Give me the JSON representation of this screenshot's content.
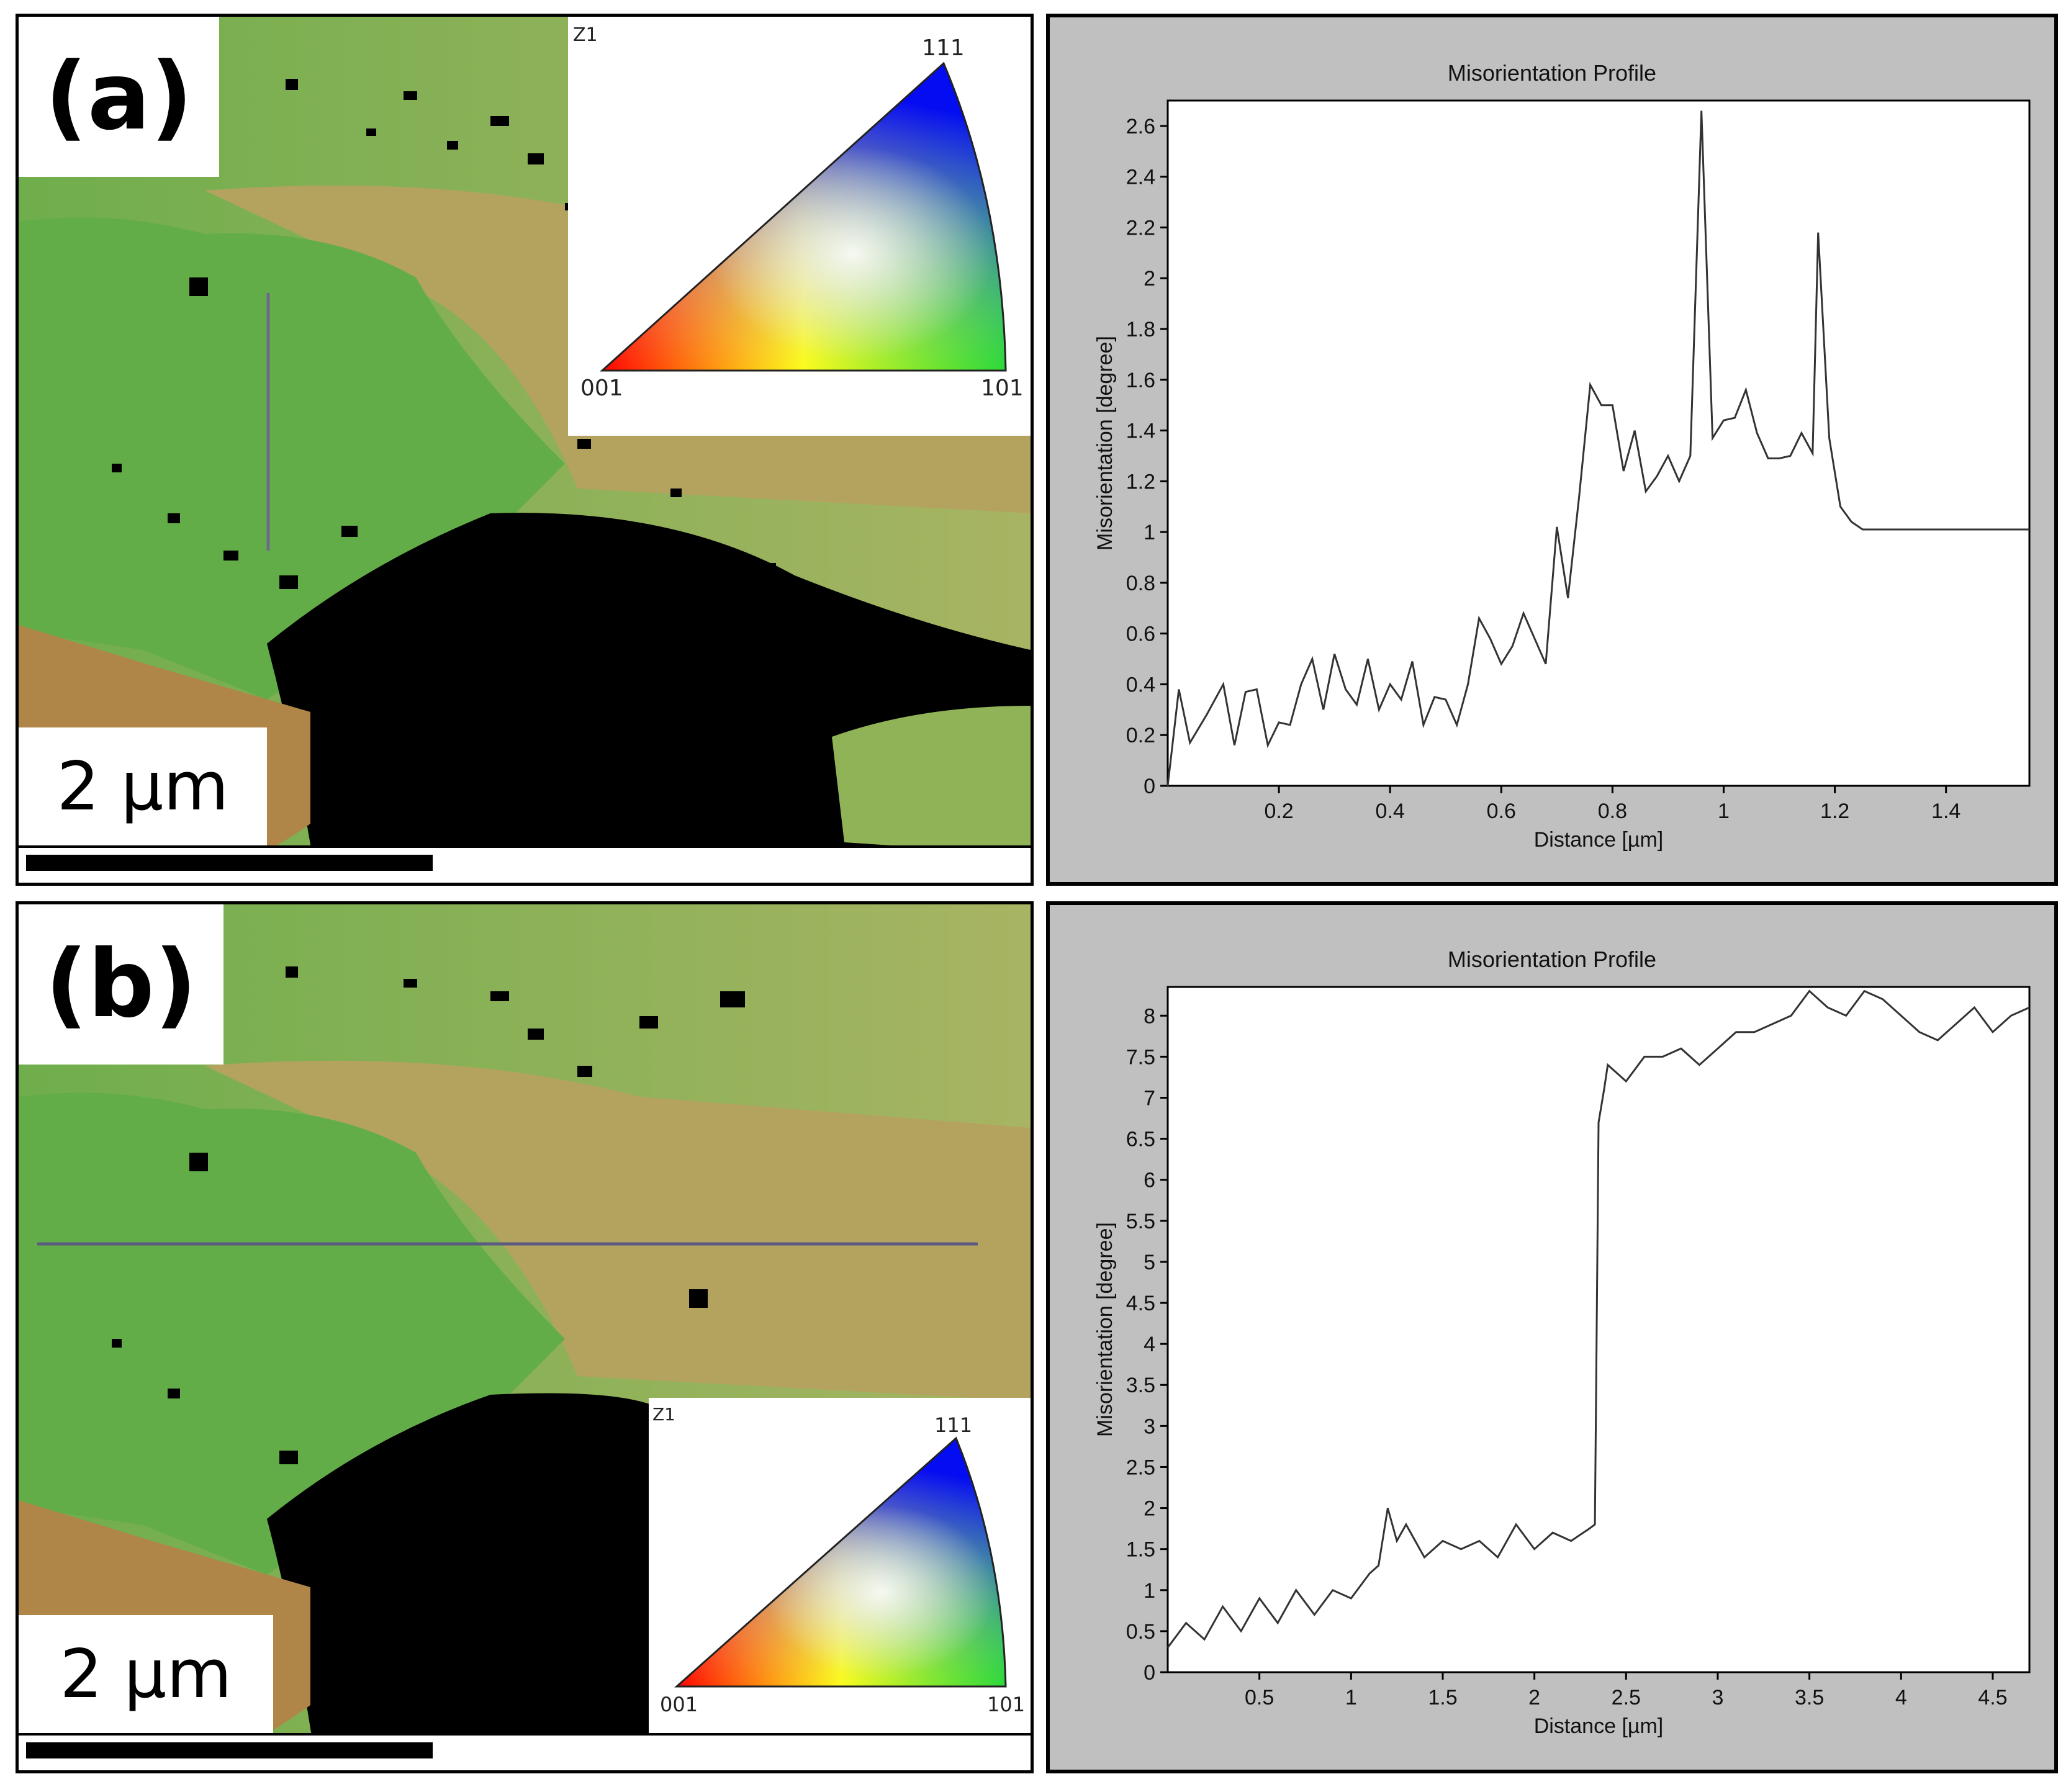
{
  "panels": {
    "a": {
      "label": "(a)",
      "scale_text": "2 µm",
      "ipf": {
        "header": "Z1",
        "corner_111": "111",
        "corner_001": "001",
        "corner_101": "101"
      }
    },
    "b": {
      "label": "(b)",
      "scale_text": "2 µm",
      "ipf": {
        "header": "Z1",
        "corner_111": "111",
        "corner_001": "001",
        "corner_101": "101"
      }
    }
  },
  "chart_data": [
    {
      "type": "line",
      "title": "Misorientation Profile",
      "xlabel": "Distance [µm]",
      "ylabel": "Misorientation [degree]",
      "xlim": [
        0,
        1.55
      ],
      "ylim": [
        0,
        2.7
      ],
      "xticks": [
        0.2,
        0.4,
        0.6,
        0.8,
        1,
        1.2,
        1.4
      ],
      "xtick_labels": [
        "0.2",
        "0.4",
        "0.6",
        "0.8",
        "1",
        "1.2",
        "1.4"
      ],
      "yticks": [
        0,
        0.2,
        0.4,
        0.6,
        0.8,
        1,
        1.2,
        1.4,
        1.6,
        1.8,
        2,
        2.2,
        2.4,
        2.6
      ],
      "ytick_labels": [
        "0",
        "0.2",
        "0.4",
        "0.6",
        "0.8",
        "1",
        "1.2",
        "1.4",
        "1.6",
        "1.8",
        "2",
        "2.2",
        "2.4",
        "2.6"
      ],
      "x": [
        0,
        0.02,
        0.04,
        0.07,
        0.1,
        0.12,
        0.14,
        0.16,
        0.18,
        0.2,
        0.22,
        0.24,
        0.26,
        0.28,
        0.3,
        0.32,
        0.34,
        0.36,
        0.38,
        0.4,
        0.42,
        0.44,
        0.46,
        0.48,
        0.5,
        0.52,
        0.54,
        0.56,
        0.58,
        0.6,
        0.62,
        0.64,
        0.66,
        0.68,
        0.7,
        0.72,
        0.74,
        0.76,
        0.78,
        0.8,
        0.82,
        0.84,
        0.86,
        0.88,
        0.9,
        0.92,
        0.94,
        0.96,
        0.98,
        1.0,
        1.02,
        1.04,
        1.06,
        1.08,
        1.1,
        1.12,
        1.14,
        1.16,
        1.17,
        1.19,
        1.21,
        1.23,
        1.25,
        1.27,
        1.29,
        1.31,
        1.33,
        1.35,
        1.37,
        1.39,
        1.41,
        1.43,
        1.45,
        1.47,
        1.49,
        1.51,
        1.53,
        1.55
      ],
      "y": [
        0,
        0.38,
        0.17,
        0.28,
        0.4,
        0.16,
        0.37,
        0.38,
        0.16,
        0.25,
        0.24,
        0.4,
        0.5,
        0.3,
        0.52,
        0.38,
        0.32,
        0.5,
        0.3,
        0.4,
        0.34,
        0.49,
        0.24,
        0.35,
        0.34,
        0.24,
        0.4,
        0.66,
        0.58,
        0.48,
        0.55,
        0.68,
        0.58,
        0.48,
        1.02,
        0.74,
        1.14,
        1.58,
        1.5,
        1.5,
        1.24,
        1.4,
        1.16,
        1.22,
        1.3,
        1.2,
        1.3,
        2.66,
        1.37,
        1.44,
        1.45,
        1.56,
        1.39,
        1.29,
        1.29,
        1.3,
        1.39,
        1.31,
        2.18,
        1.37,
        1.1,
        1.04,
        1.01,
        1.01,
        1.01,
        1.01,
        1.01,
        1.01,
        1.01,
        1.01,
        1.01,
        1.01,
        1.01,
        1.01,
        1.01,
        1.01,
        1.01,
        1.01
      ]
    },
    {
      "type": "line",
      "title": "Misorientation Profile",
      "xlabel": "Distance [µm]",
      "ylabel": "Misorientation [degree]",
      "xlim": [
        0,
        4.7
      ],
      "ylim": [
        0,
        8.35
      ],
      "xticks": [
        0.5,
        1,
        1.5,
        2,
        2.5,
        3,
        3.5,
        4,
        4.5
      ],
      "xtick_labels": [
        "0.5",
        "1",
        "1.5",
        "2",
        "2.5",
        "3",
        "3.5",
        "4",
        "4.5"
      ],
      "yticks": [
        0,
        0.5,
        1,
        1.5,
        2,
        2.5,
        3,
        3.5,
        4,
        4.5,
        5,
        5.5,
        6,
        6.5,
        7,
        7.5,
        8
      ],
      "ytick_labels": [
        "0",
        "0.5",
        "1",
        "1.5",
        "2",
        "2.5",
        "3",
        "3.5",
        "4",
        "4.5",
        "5",
        "5.5",
        "6",
        "6.5",
        "7",
        "7.5",
        "8"
      ],
      "x": [
        0,
        0.1,
        0.2,
        0.3,
        0.4,
        0.5,
        0.6,
        0.7,
        0.8,
        0.9,
        1.0,
        1.1,
        1.15,
        1.2,
        1.25,
        1.3,
        1.4,
        1.5,
        1.6,
        1.7,
        1.8,
        1.9,
        2.0,
        2.1,
        2.2,
        2.3,
        2.33,
        2.35,
        2.38,
        2.4,
        2.45,
        2.5,
        2.6,
        2.7,
        2.8,
        2.9,
        3.0,
        3.1,
        3.2,
        3.3,
        3.4,
        3.5,
        3.6,
        3.7,
        3.8,
        3.9,
        4.0,
        4.1,
        4.2,
        4.3,
        4.4,
        4.5,
        4.6,
        4.7
      ],
      "y": [
        0.3,
        0.6,
        0.4,
        0.8,
        0.5,
        0.9,
        0.6,
        1.0,
        0.7,
        1.0,
        0.9,
        1.2,
        1.3,
        2.0,
        1.6,
        1.8,
        1.4,
        1.6,
        1.5,
        1.6,
        1.4,
        1.8,
        1.5,
        1.7,
        1.6,
        1.75,
        1.8,
        6.7,
        7.1,
        7.4,
        7.3,
        7.2,
        7.5,
        7.5,
        7.6,
        7.4,
        7.6,
        7.8,
        7.8,
        7.9,
        8.0,
        8.3,
        8.1,
        8.0,
        8.3,
        8.2,
        8.0,
        7.8,
        7.7,
        7.9,
        8.1,
        7.8,
        8.0,
        8.1
      ]
    }
  ]
}
